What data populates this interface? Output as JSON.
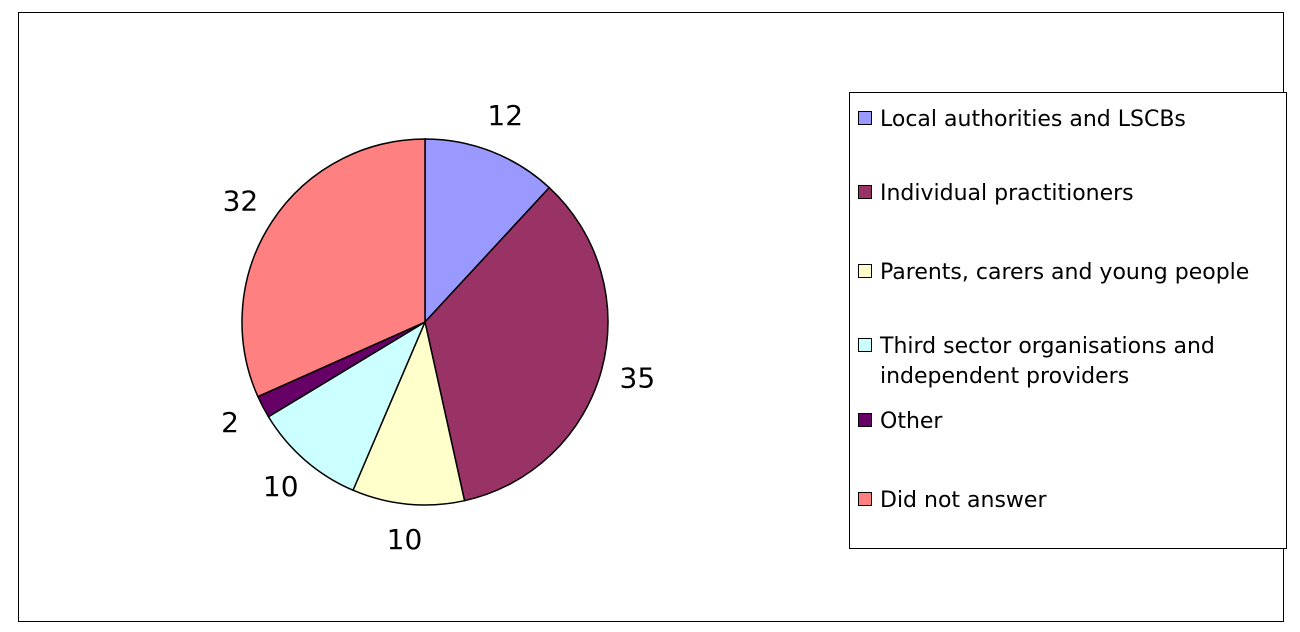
{
  "chart_data": {
    "type": "pie",
    "categories": [
      "Local authorities and LSCBs",
      "Individual practitioners",
      "Parents, carers and young people",
      "Third sector organisations and independent providers",
      "Other",
      "Did not answer"
    ],
    "values": [
      12,
      35,
      10,
      10,
      2,
      32
    ],
    "colors": [
      "#9999FF",
      "#993366",
      "#FFFFCC",
      "#CCFFFF",
      "#660066",
      "#FF8080"
    ],
    "legend_position": "right"
  }
}
